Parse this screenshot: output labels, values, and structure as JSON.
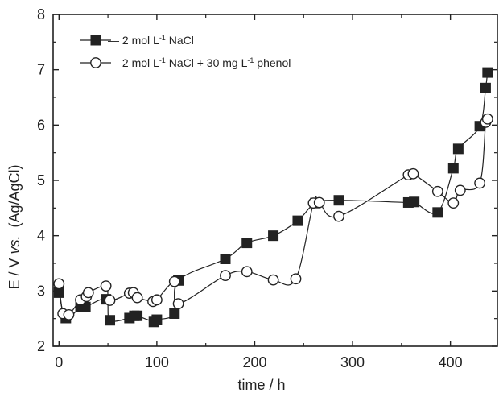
{
  "chart_data": {
    "type": "line",
    "title": "",
    "xlabel": "time / h",
    "ylabel_parts": [
      "E / V ",
      "vs.",
      "  (Ag/AgCl)"
    ],
    "xlim": [
      -6,
      448
    ],
    "ylim": [
      2,
      8
    ],
    "x_ticks": [
      0,
      100,
      200,
      300,
      400
    ],
    "x_tick_labels": [
      "0",
      "100",
      "200",
      "300",
      "400"
    ],
    "y_ticks": [
      2,
      3,
      4,
      5,
      6,
      7,
      8
    ],
    "y_tick_labels": [
      "2",
      "3",
      "4",
      "5",
      "6",
      "7",
      "8"
    ],
    "grid": false,
    "legend_position": "top-left",
    "series": [
      {
        "name_parts": [
          "2 mol L",
          "-1",
          " NaCl"
        ],
        "marker": "filled-square",
        "color": "#222222",
        "x": [
          0,
          7,
          22,
          27,
          48,
          52,
          72,
          77,
          80,
          97,
          100,
          118,
          122,
          170,
          192,
          219,
          244,
          262,
          286,
          357,
          363,
          387,
          403,
          408,
          430,
          436,
          438
        ],
        "y": [
          2.97,
          2.51,
          2.71,
          2.71,
          2.85,
          2.47,
          2.51,
          2.55,
          2.55,
          2.44,
          2.48,
          2.59,
          3.19,
          3.58,
          3.87,
          4.0,
          4.27,
          4.59,
          4.64,
          4.6,
          4.61,
          4.42,
          5.22,
          5.57,
          5.98,
          6.67,
          6.95
        ]
      },
      {
        "name_parts": [
          "2 mol L",
          "-1",
          " NaCl + 30 mg L",
          "-1",
          " phenol"
        ],
        "marker": "open-circle",
        "color": "#222222",
        "x": [
          0,
          4,
          10,
          22,
          28,
          30,
          48,
          52,
          72,
          76,
          80,
          96,
          100,
          118,
          122,
          170,
          192,
          219,
          242,
          260,
          266,
          286,
          357,
          362,
          387,
          403,
          410,
          430,
          436,
          438
        ],
        "y": [
          3.13,
          2.59,
          2.57,
          2.84,
          2.9,
          2.97,
          3.09,
          2.83,
          2.96,
          2.97,
          2.88,
          2.81,
          2.84,
          3.17,
          2.77,
          3.28,
          3.35,
          3.2,
          3.22,
          4.59,
          4.6,
          4.35,
          5.1,
          5.12,
          4.8,
          4.59,
          4.82,
          4.95,
          6.05,
          6.11
        ]
      }
    ]
  }
}
